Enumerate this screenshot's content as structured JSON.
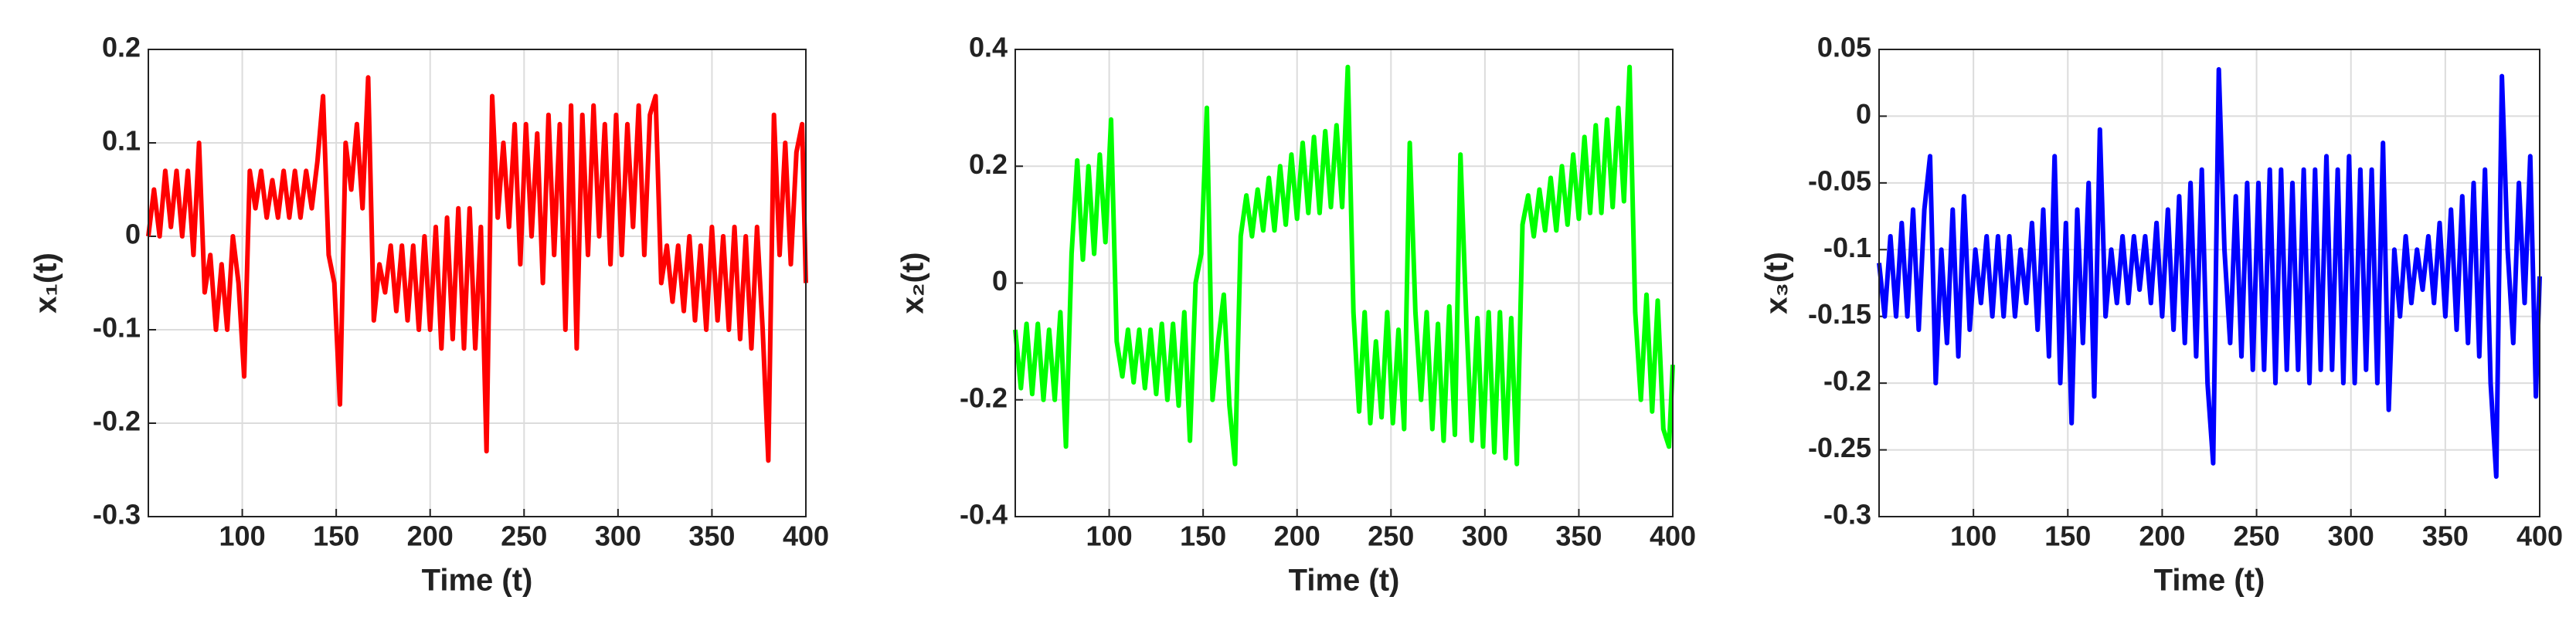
{
  "chart_data": [
    {
      "type": "line",
      "ylabel": "x₁(t)",
      "xlabel": "Time (t)",
      "color": "#ff0000",
      "grid": true,
      "xlim": [
        50,
        400
      ],
      "xticks": [
        100,
        150,
        200,
        250,
        300,
        350,
        400
      ],
      "ylim": [
        -0.3,
        0.2
      ],
      "yticks": [
        -0.3,
        -0.2,
        -0.1,
        0,
        0.1,
        0.2
      ],
      "x": [
        50,
        53,
        56,
        59,
        62,
        65,
        68,
        71,
        74,
        77,
        80,
        83,
        86,
        89,
        92,
        95,
        98,
        101,
        104,
        107,
        110,
        113,
        116,
        119,
        122,
        125,
        128,
        131,
        134,
        137,
        140,
        143,
        146,
        149,
        152,
        155,
        158,
        161,
        164,
        167,
        170,
        173,
        176,
        179,
        182,
        185,
        188,
        191,
        194,
        197,
        200,
        203,
        206,
        209,
        212,
        215,
        218,
        221,
        224,
        227,
        230,
        233,
        236,
        239,
        242,
        245,
        248,
        251,
        254,
        257,
        260,
        263,
        266,
        269,
        272,
        275,
        278,
        281,
        284,
        287,
        290,
        293,
        296,
        299,
        302,
        305,
        308,
        311,
        314,
        317,
        320,
        323,
        326,
        329,
        332,
        335,
        338,
        341,
        344,
        347,
        350,
        353,
        356,
        359,
        362,
        365,
        368,
        371,
        374,
        377,
        380,
        383,
        386,
        389,
        392,
        395,
        398,
        400
      ],
      "values": [
        0,
        0.05,
        0,
        0.07,
        0.01,
        0.07,
        0,
        0.07,
        -0.02,
        0.1,
        -0.06,
        -0.02,
        -0.1,
        -0.03,
        -0.1,
        0,
        -0.05,
        -0.15,
        0.07,
        0.03,
        0.07,
        0.02,
        0.06,
        0.02,
        0.07,
        0.02,
        0.07,
        0.02,
        0.07,
        0.03,
        0.08,
        0.15,
        -0.02,
        -0.05,
        -0.18,
        0.1,
        0.05,
        0.12,
        0.03,
        0.17,
        -0.09,
        -0.03,
        -0.06,
        -0.01,
        -0.08,
        -0.01,
        -0.09,
        -0.01,
        -0.1,
        0,
        -0.1,
        0.01,
        -0.12,
        0.02,
        -0.11,
        0.03,
        -0.12,
        0.03,
        -0.12,
        0.01,
        -0.23,
        0.15,
        0.02,
        0.1,
        0.01,
        0.12,
        -0.03,
        0.12,
        0,
        0.11,
        -0.05,
        0.13,
        -0.02,
        0.12,
        -0.1,
        0.14,
        -0.12,
        0.13,
        -0.02,
        0.14,
        0,
        0.12,
        -0.03,
        0.13,
        -0.02,
        0.12,
        0.01,
        0.14,
        -0.02,
        0.13,
        0.15,
        -0.05,
        -0.01,
        -0.07,
        -0.01,
        -0.08,
        0,
        -0.09,
        -0.01,
        -0.1,
        0.01,
        -0.09,
        0,
        -0.1,
        0.01,
        -0.11,
        0,
        -0.12,
        0.01,
        -0.1,
        -0.24,
        0.13,
        -0.02,
        0.1,
        -0.03,
        0.09,
        0.12,
        -0.05
      ]
    },
    {
      "type": "line",
      "ylabel": "x₂(t)",
      "xlabel": "Time (t)",
      "color": "#00ff00",
      "grid": true,
      "xlim": [
        50,
        400
      ],
      "xticks": [
        100,
        150,
        200,
        250,
        300,
        350,
        400
      ],
      "ylim": [
        -0.4,
        0.4
      ],
      "yticks": [
        -0.4,
        -0.2,
        0,
        0.2,
        0.4
      ],
      "x": [
        50,
        53,
        56,
        59,
        62,
        65,
        68,
        71,
        74,
        77,
        80,
        83,
        86,
        89,
        92,
        95,
        98,
        101,
        104,
        107,
        110,
        113,
        116,
        119,
        122,
        125,
        128,
        131,
        134,
        137,
        140,
        143,
        146,
        149,
        152,
        155,
        158,
        161,
        164,
        167,
        170,
        173,
        176,
        179,
        182,
        185,
        188,
        191,
        194,
        197,
        200,
        203,
        206,
        209,
        212,
        215,
        218,
        221,
        224,
        227,
        230,
        233,
        236,
        239,
        242,
        245,
        248,
        251,
        254,
        257,
        260,
        263,
        266,
        269,
        272,
        275,
        278,
        281,
        284,
        287,
        290,
        293,
        296,
        299,
        302,
        305,
        308,
        311,
        314,
        317,
        320,
        323,
        326,
        329,
        332,
        335,
        338,
        341,
        344,
        347,
        350,
        353,
        356,
        359,
        362,
        365,
        368,
        371,
        374,
        377,
        380,
        383,
        386,
        389,
        392,
        395,
        398,
        400
      ],
      "values": [
        -0.08,
        -0.18,
        -0.07,
        -0.19,
        -0.07,
        -0.2,
        -0.08,
        -0.2,
        -0.05,
        -0.28,
        0.05,
        0.21,
        0.04,
        0.2,
        0.05,
        0.22,
        0.07,
        0.28,
        -0.1,
        -0.16,
        -0.08,
        -0.17,
        -0.08,
        -0.18,
        -0.08,
        -0.19,
        -0.07,
        -0.2,
        -0.07,
        -0.21,
        -0.05,
        -0.27,
        0.0,
        0.05,
        0.3,
        -0.2,
        -0.1,
        -0.02,
        -0.21,
        -0.31,
        0.08,
        0.15,
        0.08,
        0.16,
        0.09,
        0.18,
        0.09,
        0.2,
        0.1,
        0.22,
        0.11,
        0.24,
        0.12,
        0.25,
        0.12,
        0.26,
        0.13,
        0.27,
        0.13,
        0.37,
        -0.05,
        -0.22,
        -0.05,
        -0.24,
        -0.1,
        -0.23,
        -0.05,
        -0.24,
        -0.08,
        -0.25,
        0.24,
        -0.05,
        -0.2,
        -0.05,
        -0.25,
        -0.07,
        -0.27,
        -0.04,
        -0.26,
        0.22,
        -0.05,
        -0.27,
        -0.06,
        -0.28,
        -0.05,
        -0.29,
        -0.05,
        -0.3,
        -0.06,
        -0.31,
        0.1,
        0.15,
        0.08,
        0.16,
        0.09,
        0.18,
        0.09,
        0.2,
        0.1,
        0.22,
        0.11,
        0.25,
        0.12,
        0.27,
        0.12,
        0.28,
        0.13,
        0.3,
        0.14,
        0.37,
        -0.05,
        -0.2,
        -0.02,
        -0.22,
        -0.03,
        -0.25,
        -0.28,
        -0.14
      ]
    },
    {
      "type": "line",
      "ylabel": "x₃(t)",
      "xlabel": "Time (t)",
      "color": "#0000ff",
      "grid": true,
      "xlim": [
        50,
        400
      ],
      "xticks": [
        100,
        150,
        200,
        250,
        300,
        350,
        400
      ],
      "ylim": [
        -0.3,
        0.05
      ],
      "yticks": [
        -0.3,
        -0.25,
        -0.2,
        -0.15,
        -0.1,
        -0.05,
        0,
        0.05
      ],
      "x": [
        50,
        53,
        56,
        59,
        62,
        65,
        68,
        71,
        74,
        77,
        80,
        83,
        86,
        89,
        92,
        95,
        98,
        101,
        104,
        107,
        110,
        113,
        116,
        119,
        122,
        125,
        128,
        131,
        134,
        137,
        140,
        143,
        146,
        149,
        152,
        155,
        158,
        161,
        164,
        167,
        170,
        173,
        176,
        179,
        182,
        185,
        188,
        191,
        194,
        197,
        200,
        203,
        206,
        209,
        212,
        215,
        218,
        221,
        224,
        227,
        230,
        233,
        236,
        239,
        242,
        245,
        248,
        251,
        254,
        257,
        260,
        263,
        266,
        269,
        272,
        275,
        278,
        281,
        284,
        287,
        290,
        293,
        296,
        299,
        302,
        305,
        308,
        311,
        314,
        317,
        320,
        323,
        326,
        329,
        332,
        335,
        338,
        341,
        344,
        347,
        350,
        353,
        356,
        359,
        362,
        365,
        368,
        371,
        374,
        377,
        380,
        383,
        386,
        389,
        392,
        395,
        398,
        400
      ],
      "values": [
        -0.11,
        -0.15,
        -0.09,
        -0.15,
        -0.08,
        -0.15,
        -0.07,
        -0.16,
        -0.07,
        -0.03,
        -0.2,
        -0.1,
        -0.17,
        -0.07,
        -0.18,
        -0.06,
        -0.16,
        -0.1,
        -0.14,
        -0.09,
        -0.15,
        -0.09,
        -0.15,
        -0.09,
        -0.15,
        -0.1,
        -0.14,
        -0.08,
        -0.16,
        -0.07,
        -0.18,
        -0.03,
        -0.2,
        -0.08,
        -0.23,
        -0.07,
        -0.17,
        -0.05,
        -0.21,
        -0.01,
        -0.15,
        -0.1,
        -0.14,
        -0.09,
        -0.14,
        -0.09,
        -0.13,
        -0.09,
        -0.14,
        -0.08,
        -0.15,
        -0.07,
        -0.16,
        -0.06,
        -0.17,
        -0.05,
        -0.18,
        -0.04,
        -0.2,
        -0.26,
        0.035,
        -0.1,
        -0.17,
        -0.06,
        -0.18,
        -0.05,
        -0.19,
        -0.05,
        -0.19,
        -0.04,
        -0.2,
        -0.04,
        -0.19,
        -0.05,
        -0.19,
        -0.04,
        -0.2,
        -0.04,
        -0.19,
        -0.03,
        -0.19,
        -0.04,
        -0.2,
        -0.03,
        -0.2,
        -0.04,
        -0.19,
        -0.04,
        -0.2,
        -0.02,
        -0.22,
        -0.1,
        -0.15,
        -0.09,
        -0.14,
        -0.1,
        -0.13,
        -0.09,
        -0.14,
        -0.08,
        -0.15,
        -0.07,
        -0.16,
        -0.06,
        -0.17,
        -0.05,
        -0.18,
        -0.04,
        -0.2,
        -0.27,
        0.03,
        -0.1,
        -0.17,
        -0.05,
        -0.14,
        -0.03,
        -0.21,
        -0.12
      ]
    }
  ]
}
